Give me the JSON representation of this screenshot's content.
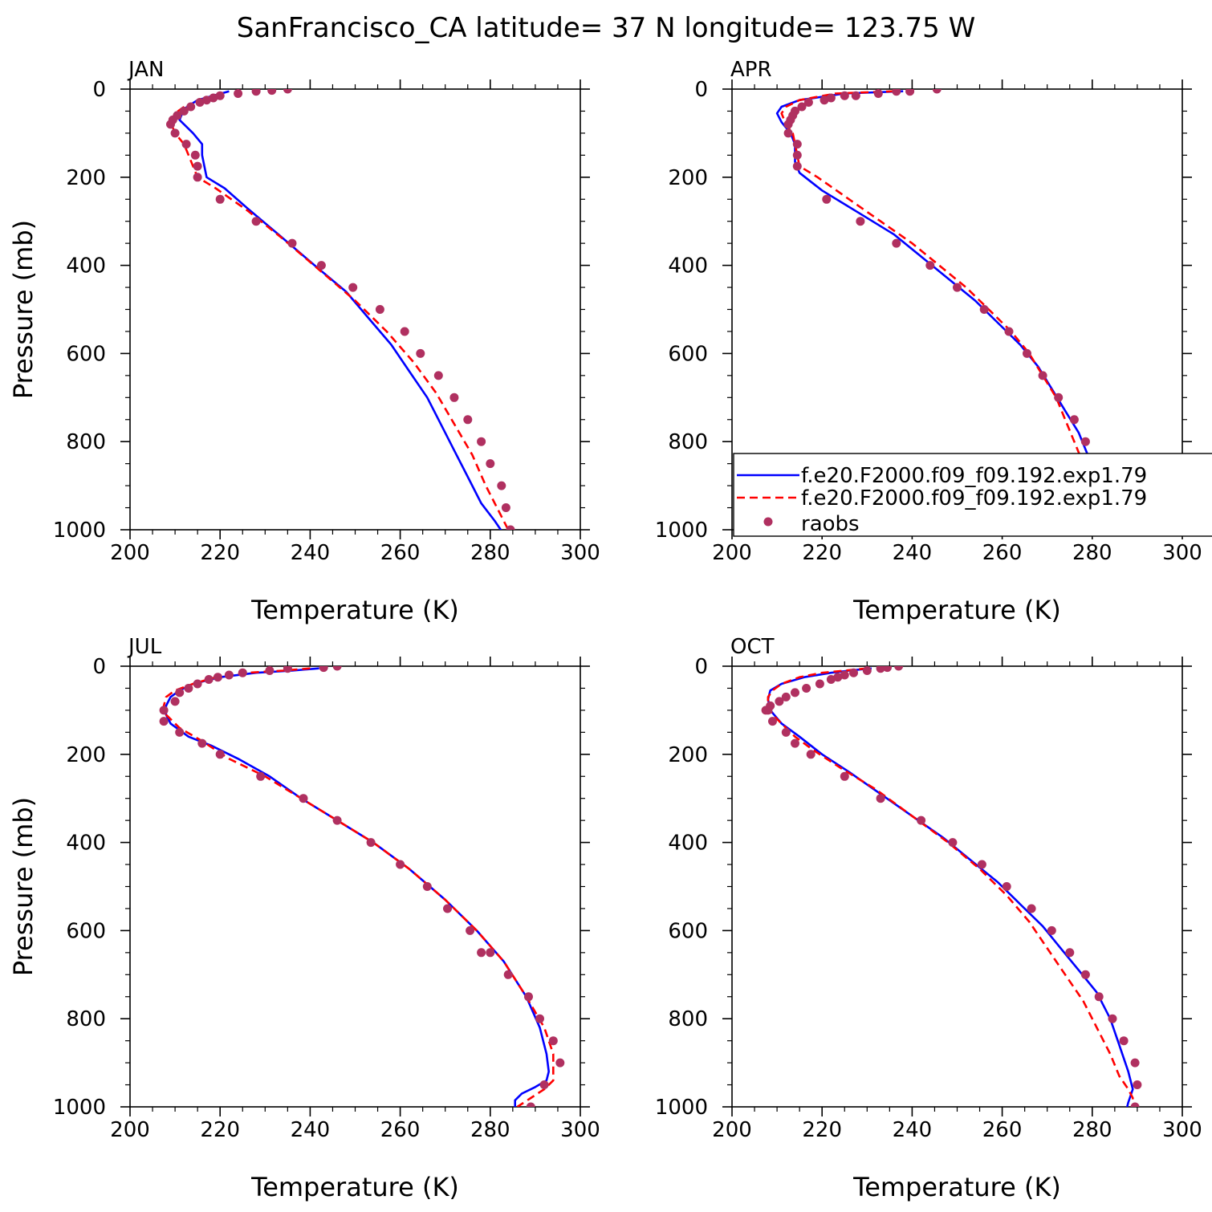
{
  "title": "SanFrancisco_CA  latitude= 37 N longitude= 123.75 W",
  "legend": {
    "placement": "inside APR panel, lower-right (clipped at right edge)",
    "entries": [
      {
        "label": "f.e20.F2000.f09_f09.192.exp1.79",
        "style": "solid",
        "marker": ""
      },
      {
        "label": "f.e20.F2000.f09_f09.192.exp1.79",
        "style": "dashed",
        "marker": ""
      },
      {
        "label": "raobs",
        "style": "",
        "marker": "dot"
      }
    ]
  },
  "colors": {
    "model_solid": "#0000ff",
    "model_dashed": "#ff0000",
    "obs": "#b03060",
    "frame": "#000000",
    "background": "#ffffff"
  },
  "chart_data": [
    {
      "type": "line",
      "panel_label": "JAN",
      "xlabel": "Temperature (K)",
      "ylabel": "Pressure (mb)",
      "xlim": [
        200,
        300
      ],
      "ylim": [
        1000,
        0
      ],
      "y_inverted": true,
      "xticks": [
        200,
        220,
        240,
        260,
        280,
        300
      ],
      "yticks": [
        0,
        200,
        400,
        600,
        800,
        1000
      ],
      "grid": false,
      "series": [
        {
          "style": "solid",
          "x": [
            222,
            215,
            212,
            211,
            214,
            216,
            216,
            217,
            221,
            226,
            233,
            241,
            248,
            253,
            258,
            262,
            266,
            269,
            272,
            275,
            278,
            281,
            283
          ],
          "y": [
            5,
            25,
            45,
            70,
            100,
            125,
            150,
            200,
            225,
            270,
            330,
            400,
            460,
            520,
            580,
            640,
            700,
            760,
            820,
            880,
            940,
            980,
            1010
          ]
        },
        {
          "style": "dashed",
          "x": [
            212,
            210,
            209,
            210,
            212,
            213,
            214,
            215,
            219,
            226,
            234,
            242,
            250,
            257,
            263,
            268,
            272,
            276,
            279,
            282,
            284
          ],
          "y": [
            40,
            55,
            75,
            100,
            125,
            150,
            175,
            200,
            225,
            275,
            340,
            410,
            480,
            550,
            620,
            690,
            760,
            830,
            900,
            960,
            1000
          ]
        },
        {
          "x": [
            235,
            231.5,
            228,
            224,
            220,
            218.5,
            217,
            215.5,
            213.5,
            212,
            210.5,
            209.5,
            209,
            210,
            212.5,
            214.5,
            215,
            215,
            220,
            228,
            236,
            242.5,
            249.5,
            255.5,
            261,
            264.5,
            268.5,
            272,
            275,
            278,
            280,
            282.5,
            283.5,
            284.5
          ],
          "y": [
            0,
            3,
            5,
            10,
            15,
            20,
            25,
            30,
            40,
            50,
            60,
            70,
            80,
            100,
            125,
            150,
            175,
            200,
            250,
            300,
            350,
            400,
            450,
            500,
            550,
            600,
            650,
            700,
            750,
            800,
            850,
            900,
            950,
            1000
          ]
        }
      ]
    },
    {
      "type": "line",
      "panel_label": "APR",
      "xlabel": "Temperature (K)",
      "ylabel": "",
      "xlim": [
        200,
        300
      ],
      "ylim": [
        1000,
        0
      ],
      "y_inverted": true,
      "xticks": [
        200,
        220,
        240,
        260,
        280,
        300
      ],
      "yticks": [
        0,
        200,
        400,
        600,
        800,
        1000
      ],
      "grid": false,
      "series": [
        {
          "style": "solid",
          "x": [
            238,
            225,
            215,
            211,
            210,
            211,
            213,
            214,
            214,
            214,
            215,
            220,
            228,
            236,
            242,
            248,
            254,
            259,
            264,
            268,
            271,
            274,
            277,
            279,
            281,
            283,
            284,
            285
          ],
          "y": [
            5,
            10,
            25,
            40,
            55,
            75,
            100,
            125,
            150,
            165,
            190,
            230,
            280,
            330,
            380,
            430,
            480,
            530,
            580,
            630,
            680,
            730,
            780,
            830,
            880,
            930,
            970,
            1010
          ]
        },
        {
          "style": "dashed",
          "x": [
            236,
            223,
            215,
            212,
            211,
            212,
            213.5,
            214,
            214.5,
            215,
            219,
            226,
            233,
            240,
            246,
            252,
            257,
            262,
            266,
            269,
            272,
            274,
            276,
            278,
            280,
            282,
            284
          ],
          "y": [
            5,
            10,
            25,
            40,
            55,
            80,
            100,
            125,
            150,
            175,
            200,
            250,
            300,
            350,
            400,
            450,
            500,
            550,
            600,
            650,
            700,
            750,
            800,
            850,
            900,
            950,
            1010
          ]
        },
        {
          "x": [
            245.5,
            239.5,
            236.5,
            232.5,
            227.5,
            225,
            222,
            220.5,
            217,
            215.5,
            214,
            213.5,
            213,
            212.5,
            212.5,
            214.5,
            214.5,
            214.5,
            221,
            228.5,
            236.5,
            244,
            250,
            256,
            261.5,
            265.5,
            269,
            272.5,
            276,
            278.5,
            281,
            283.5,
            284.5,
            285.5
          ],
          "y": [
            0,
            5,
            5,
            10,
            15,
            15,
            20,
            25,
            30,
            40,
            50,
            60,
            70,
            80,
            100,
            125,
            150,
            175,
            250,
            300,
            350,
            400,
            450,
            500,
            550,
            600,
            650,
            700,
            750,
            800,
            850,
            900,
            950,
            1000
          ]
        }
      ]
    },
    {
      "type": "line",
      "panel_label": "JUL",
      "xlabel": "Temperature (K)",
      "ylabel": "Pressure (mb)",
      "xlim": [
        200,
        300
      ],
      "ylim": [
        1000,
        0
      ],
      "y_inverted": true,
      "xticks": [
        200,
        220,
        240,
        260,
        280,
        300
      ],
      "yticks": [
        0,
        200,
        400,
        600,
        800,
        1000
      ],
      "grid": false,
      "series": [
        {
          "style": "solid",
          "x": [
            242,
            236,
            228,
            220,
            214,
            211,
            209,
            208,
            208,
            209,
            213,
            218,
            224,
            231,
            238,
            246,
            254,
            262,
            270,
            277,
            283,
            288,
            291,
            292.5,
            293,
            292.5,
            290,
            287,
            285.5,
            285.5
          ],
          "y": [
            5,
            10,
            15,
            25,
            40,
            55,
            70,
            90,
            110,
            130,
            160,
            180,
            210,
            250,
            300,
            350,
            400,
            460,
            530,
            600,
            670,
            750,
            820,
            880,
            920,
            940,
            955,
            970,
            985,
            1010
          ]
        },
        {
          "style": "dashed",
          "x": [
            240,
            234,
            226,
            219,
            214,
            210,
            208,
            207.5,
            208,
            211,
            216,
            222,
            230,
            238,
            246,
            254,
            262,
            270,
            277,
            283,
            288,
            292,
            294,
            294,
            292,
            289,
            286
          ],
          "y": [
            5,
            10,
            15,
            25,
            40,
            55,
            70,
            90,
            110,
            140,
            170,
            210,
            250,
            300,
            350,
            400,
            460,
            530,
            600,
            670,
            750,
            820,
            880,
            940,
            960,
            980,
            1000
          ]
        },
        {
          "x": [
            246,
            243,
            235,
            231,
            225,
            222,
            219.5,
            217.5,
            215,
            213,
            211,
            210,
            207.5,
            207.5,
            211,
            216,
            220,
            229,
            238.5,
            246,
            253.5,
            260,
            266,
            270.5,
            275.5,
            278,
            280,
            284,
            288.5,
            291,
            294,
            295.5,
            292,
            289
          ],
          "y": [
            0,
            3,
            5,
            10,
            15,
            20,
            25,
            30,
            40,
            50,
            60,
            80,
            100,
            125,
            150,
            175,
            200,
            250,
            300,
            350,
            400,
            450,
            500,
            550,
            600,
            650,
            650,
            700,
            750,
            800,
            850,
            900,
            950,
            1000
          ]
        }
      ]
    },
    {
      "type": "line",
      "panel_label": "OCT",
      "xlabel": "Temperature (K)",
      "ylabel": "",
      "xlim": [
        200,
        300
      ],
      "ylim": [
        1000,
        0
      ],
      "y_inverted": true,
      "xticks": [
        200,
        220,
        240,
        260,
        280,
        300
      ],
      "yticks": [
        0,
        200,
        400,
        600,
        800,
        1000
      ],
      "grid": false,
      "series": [
        {
          "style": "solid",
          "x": [
            231,
            226,
            222,
            216,
            211,
            208.5,
            208,
            208.5,
            211,
            215,
            220,
            226,
            233,
            240,
            247,
            253,
            259,
            264,
            269,
            273,
            277,
            281,
            284,
            286,
            288,
            289,
            288,
            287.5
          ],
          "y": [
            5,
            10,
            15,
            25,
            40,
            55,
            75,
            100,
            130,
            160,
            200,
            240,
            290,
            340,
            390,
            440,
            490,
            540,
            590,
            640,
            690,
            740,
            800,
            860,
            920,
            960,
            990,
            1010
          ]
        },
        {
          "style": "dashed",
          "x": [
            230,
            225,
            220,
            215,
            211,
            209,
            208,
            208,
            209,
            211,
            214,
            218,
            224,
            232,
            240,
            248,
            255,
            261,
            266,
            270,
            274,
            278,
            281,
            284,
            286,
            288,
            289,
            289
          ],
          "y": [
            5,
            10,
            15,
            25,
            40,
            55,
            70,
            90,
            110,
            130,
            160,
            190,
            230,
            280,
            340,
            400,
            460,
            520,
            580,
            640,
            700,
            760,
            820,
            880,
            930,
            960,
            980,
            1000
          ]
        },
        {
          "x": [
            237,
            234.5,
            233,
            230,
            227,
            225,
            223.5,
            222,
            219.5,
            216.5,
            214,
            212,
            210.5,
            208.5,
            208,
            207.5,
            209,
            212,
            214,
            217.5,
            225,
            233,
            242,
            249,
            255.5,
            261,
            266.5,
            271,
            275,
            278.5,
            281.5,
            284.5,
            287,
            289.5,
            290,
            289.5
          ],
          "y": [
            0,
            3,
            5,
            10,
            15,
            20,
            25,
            30,
            40,
            50,
            60,
            70,
            80,
            90,
            100,
            100,
            125,
            150,
            175,
            200,
            250,
            300,
            350,
            400,
            450,
            500,
            550,
            600,
            650,
            700,
            750,
            800,
            850,
            900,
            950,
            1000
          ]
        }
      ]
    }
  ]
}
